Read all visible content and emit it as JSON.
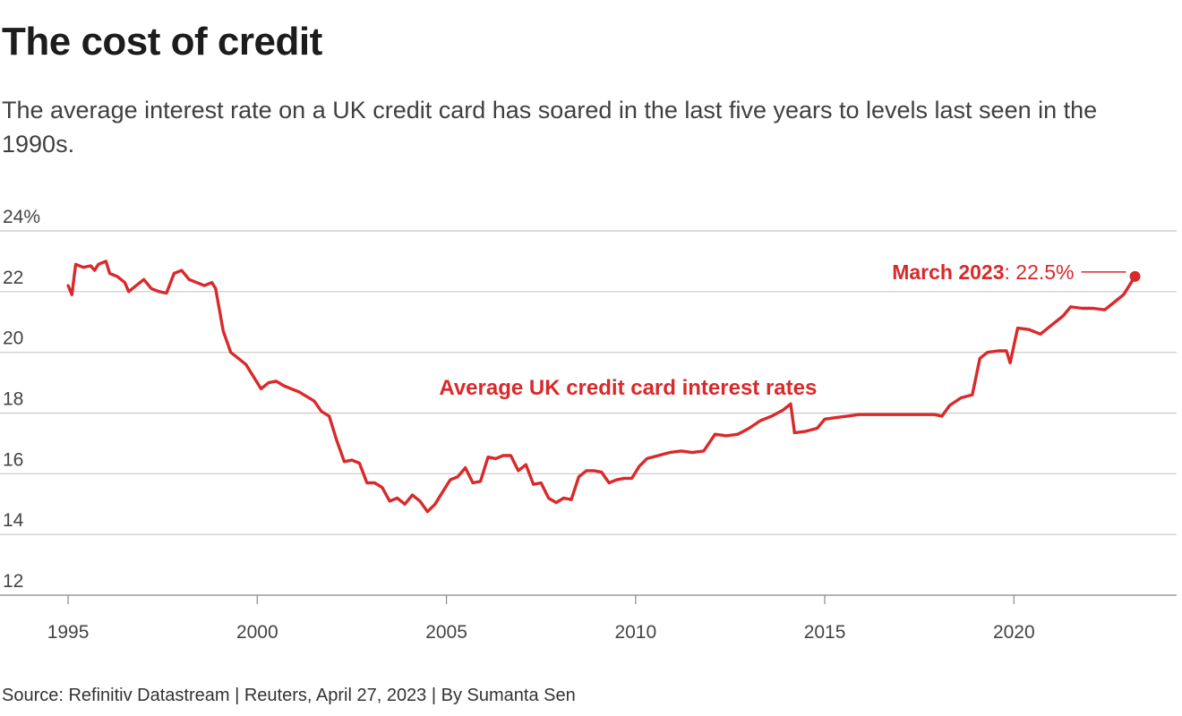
{
  "header": {
    "title": "The cost of credit",
    "subtitle": "The average interest rate on a UK credit card has soared in the last five years to levels last seen in the 1990s."
  },
  "footer": {
    "source": "Source: Refinitiv Datastream | Reuters, April 27, 2023 | By Sumanta Sen"
  },
  "colors": {
    "series": "#d9292b",
    "grid": "#c8c8c8",
    "axis": "#888888"
  },
  "chart_data": {
    "type": "line",
    "title": "The cost of credit",
    "xlabel": "",
    "ylabel": "",
    "xlim": [
      1993.2,
      2024.3
    ],
    "ylim": [
      12,
      24
    ],
    "y_ticks": [
      {
        "value": 24,
        "label": "24%"
      },
      {
        "value": 22,
        "label": "22"
      },
      {
        "value": 20,
        "label": "20"
      },
      {
        "value": 18,
        "label": "18"
      },
      {
        "value": 16,
        "label": "16"
      },
      {
        "value": 14,
        "label": "14"
      },
      {
        "value": 12,
        "label": "12"
      }
    ],
    "x_ticks": [
      {
        "value": 1995,
        "label": "1995"
      },
      {
        "value": 2000,
        "label": "2000"
      },
      {
        "value": 2005,
        "label": "2005"
      },
      {
        "value": 2010,
        "label": "2010"
      },
      {
        "value": 2015,
        "label": "2015"
      },
      {
        "value": 2020,
        "label": "2020"
      }
    ],
    "grid": true,
    "legend": "none",
    "series": [
      {
        "name": "Average UK credit card interest rates",
        "x": [
          1995.0,
          1995.1,
          1995.2,
          1995.4,
          1995.6,
          1995.7,
          1995.8,
          1996.0,
          1996.1,
          1996.3,
          1996.5,
          1996.6,
          1996.8,
          1997.0,
          1997.2,
          1997.4,
          1997.6,
          1997.8,
          1998.0,
          1998.2,
          1998.4,
          1998.6,
          1998.8,
          1998.9,
          1999.1,
          1999.3,
          1999.5,
          1999.7,
          1999.9,
          2000.1,
          2000.3,
          2000.5,
          2000.7,
          2000.9,
          2001.1,
          2001.3,
          2001.5,
          2001.7,
          2001.9,
          2002.1,
          2002.3,
          2002.5,
          2002.7,
          2002.9,
          2003.1,
          2003.3,
          2003.5,
          2003.7,
          2003.9,
          2004.1,
          2004.3,
          2004.5,
          2004.7,
          2004.9,
          2005.1,
          2005.3,
          2005.5,
          2005.7,
          2005.9,
          2006.1,
          2006.3,
          2006.5,
          2006.7,
          2006.9,
          2007.1,
          2007.3,
          2007.5,
          2007.7,
          2007.9,
          2008.1,
          2008.3,
          2008.5,
          2008.7,
          2008.9,
          2009.1,
          2009.3,
          2009.5,
          2009.7,
          2009.9,
          2010.1,
          2010.3,
          2010.6,
          2010.9,
          2011.2,
          2011.5,
          2011.8,
          2012.1,
          2012.4,
          2012.7,
          2013.0,
          2013.3,
          2013.6,
          2013.9,
          2014.1,
          2014.2,
          2014.5,
          2014.8,
          2015.0,
          2015.3,
          2015.6,
          2015.9,
          2016.3,
          2016.7,
          2017.0,
          2017.3,
          2017.6,
          2017.9,
          2018.1,
          2018.3,
          2018.6,
          2018.9,
          2019.1,
          2019.3,
          2019.6,
          2019.8,
          2019.9,
          2020.1,
          2020.4,
          2020.7,
          2021.0,
          2021.3,
          2021.5,
          2021.8,
          2022.1,
          2022.4,
          2022.7,
          2022.9,
          2023.2
        ],
        "values": [
          22.2,
          21.9,
          22.9,
          22.8,
          22.85,
          22.7,
          22.9,
          23.0,
          22.6,
          22.5,
          22.3,
          22.0,
          22.2,
          22.4,
          22.1,
          22.0,
          21.95,
          22.6,
          22.7,
          22.4,
          22.3,
          22.2,
          22.3,
          22.1,
          20.7,
          20.0,
          19.8,
          19.6,
          19.2,
          18.8,
          19.0,
          19.05,
          18.9,
          18.8,
          18.7,
          18.55,
          18.4,
          18.05,
          17.9,
          17.1,
          16.4,
          16.45,
          16.35,
          15.7,
          15.7,
          15.55,
          15.1,
          15.2,
          15.0,
          15.3,
          15.1,
          14.75,
          15.0,
          15.4,
          15.8,
          15.9,
          16.2,
          15.7,
          15.75,
          16.55,
          16.5,
          16.6,
          16.6,
          16.1,
          16.3,
          15.65,
          15.7,
          15.2,
          15.05,
          15.2,
          15.15,
          15.9,
          16.1,
          16.1,
          16.05,
          15.7,
          15.8,
          15.85,
          15.85,
          16.25,
          16.5,
          16.6,
          16.7,
          16.75,
          16.7,
          16.75,
          17.3,
          17.25,
          17.3,
          17.5,
          17.75,
          17.9,
          18.1,
          18.3,
          17.35,
          17.4,
          17.5,
          17.8,
          17.85,
          17.9,
          17.95,
          17.95,
          17.95,
          17.95,
          17.95,
          17.95,
          17.95,
          17.9,
          18.25,
          18.5,
          18.6,
          19.8,
          20.0,
          20.05,
          20.05,
          19.65,
          20.8,
          20.75,
          20.6,
          20.9,
          21.2,
          21.5,
          21.45,
          21.45,
          21.4,
          21.7,
          21.9,
          22.5
        ]
      }
    ],
    "annotations": [
      {
        "series_label": "Average UK credit card interest rates",
        "x": 2009.8,
        "y": 18.6
      },
      {
        "bold": "March 2023",
        "rest": ": 22.5%",
        "x": 2023.2,
        "y": 22.5
      }
    ]
  }
}
